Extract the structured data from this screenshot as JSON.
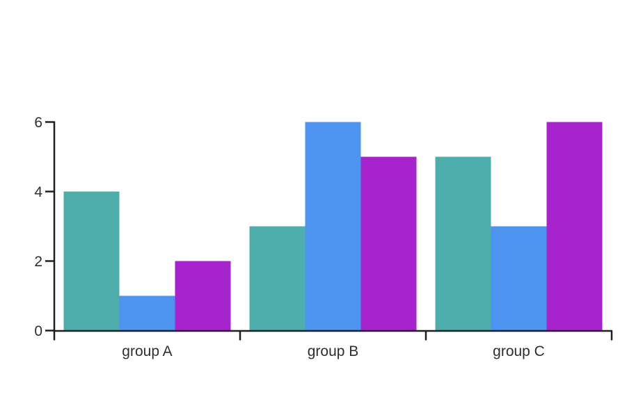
{
  "chart_data": {
    "type": "bar",
    "title": "",
    "xlabel": "",
    "ylabel": "",
    "categories": [
      "group A",
      "group B",
      "group C"
    ],
    "series": [
      {
        "color": "#4dadab",
        "values": [
          4,
          3,
          5
        ]
      },
      {
        "color": "#4d93f0",
        "values": [
          1,
          6,
          3
        ]
      },
      {
        "color": "#a723ce",
        "values": [
          2,
          5,
          6
        ]
      }
    ],
    "ylim": [
      0,
      6
    ],
    "yticks": [
      0,
      2,
      4,
      6
    ],
    "ytick_labels": [
      "0",
      "2",
      "4",
      "6"
    ],
    "grid": false,
    "legend": "none",
    "bar_gap_within_group": 0,
    "axis_color": "#1f1f1f",
    "text_color": "#2e2e2e",
    "background": "#ffffff"
  }
}
